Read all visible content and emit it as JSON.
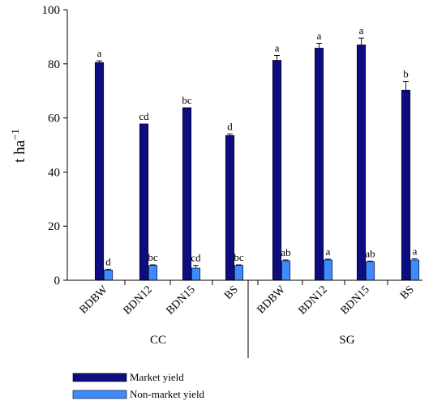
{
  "chart_data": {
    "type": "bar",
    "ylabel": "t ha",
    "ylabel_superscript": "−1",
    "ylim": [
      0,
      100
    ],
    "yticks": [
      0,
      20,
      40,
      60,
      80,
      100
    ],
    "categories": [
      "BDBW",
      "BDN12",
      "BDN15",
      "BS",
      "BDBW",
      "BDN12",
      "BDN15",
      "BS"
    ],
    "groups": [
      {
        "label": "CC",
        "categories": [
          0,
          1,
          2,
          3
        ]
      },
      {
        "label": "SG",
        "categories": [
          4,
          5,
          6,
          7
        ]
      }
    ],
    "series": [
      {
        "name": "Market yield",
        "color": "#0d0d80",
        "values": [
          80.5,
          57.8,
          63.8,
          53.5,
          81.3,
          85.8,
          87.0,
          70.3
        ],
        "errors": [
          0.6,
          0.0,
          0.0,
          0.6,
          1.8,
          1.8,
          2.5,
          3.2
        ],
        "letters": [
          "a",
          "cd",
          "bc",
          "d",
          "a",
          "a",
          "a",
          "b"
        ]
      },
      {
        "name": "Non-market yield",
        "color": "#3d8bff",
        "values": [
          3.8,
          5.5,
          4.5,
          5.5,
          7.2,
          7.5,
          6.9,
          7.5
        ],
        "errors": [
          0.3,
          0.2,
          1.0,
          0.2,
          0.3,
          0.3,
          0.2,
          0.4
        ],
        "letters": [
          "d",
          "bc",
          "cd",
          "bc",
          "ab",
          "a",
          "ab",
          "a"
        ]
      }
    ],
    "legend_position": "bottom-left",
    "grid": false
  }
}
